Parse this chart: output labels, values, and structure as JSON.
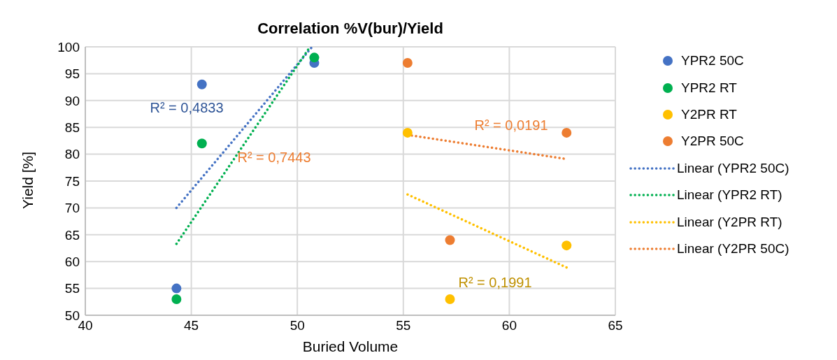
{
  "chart_data": {
    "type": "scatter",
    "title": "Correlation %V(bur)/Yield",
    "xlabel": "Buried Volume",
    "ylabel": "Yield [%]",
    "xlim": [
      40,
      65
    ],
    "xticks": [
      40,
      45,
      50,
      55,
      60,
      65
    ],
    "ylim": [
      50,
      100
    ],
    "yticks": [
      50,
      55,
      60,
      65,
      70,
      75,
      80,
      85,
      90,
      95,
      100
    ],
    "grid": true,
    "legend": "right",
    "series": [
      {
        "name": "YPR2 50C",
        "type": "scatter",
        "marker": "circle",
        "color": "#4472c4",
        "x": [
          45.5,
          44.3,
          50.8
        ],
        "values": [
          93,
          55,
          97
        ]
      },
      {
        "name": "YPR2 RT",
        "type": "scatter",
        "marker": "circle",
        "color": "#00b050",
        "x": [
          45.5,
          44.3,
          50.8
        ],
        "values": [
          82,
          53,
          98
        ]
      },
      {
        "name": "Y2PR RT",
        "type": "scatter",
        "marker": "circle",
        "color": "#ffc000",
        "x": [
          55.2,
          57.2,
          62.7
        ],
        "values": [
          84,
          53,
          63
        ]
      },
      {
        "name": "Y2PR 50C",
        "type": "scatter",
        "marker": "circle",
        "color": "#ed7d31",
        "x": [
          55.2,
          57.2,
          62.7
        ],
        "values": [
          97,
          64,
          84
        ]
      },
      {
        "name": "Linear (YPR2 50C)",
        "type": "line",
        "line_style": "dotted",
        "color": "#4472c4",
        "x": [
          44.3,
          50.7
        ],
        "values": [
          70,
          100
        ]
      },
      {
        "name": "Linear (YPR2 RT)",
        "type": "line",
        "line_style": "dotted",
        "color": "#00b050",
        "x": [
          44.3,
          50.6
        ],
        "values": [
          63.3,
          100
        ]
      },
      {
        "name": "Linear (Y2PR RT)",
        "type": "line",
        "line_style": "dotted",
        "color": "#ffc000",
        "x": [
          55.2,
          62.7
        ],
        "values": [
          72.5,
          58.9
        ]
      },
      {
        "name": "Linear (Y2PR 50C)",
        "type": "line",
        "line_style": "dotted",
        "color": "#ed7d31",
        "x": [
          55.2,
          62.7
        ],
        "values": [
          83.6,
          79.1
        ]
      }
    ],
    "annotations": [
      "R² = 0,4833",
      "R² = 0,7443",
      "R² = 0,0191",
      "R² = 0,1991"
    ]
  }
}
